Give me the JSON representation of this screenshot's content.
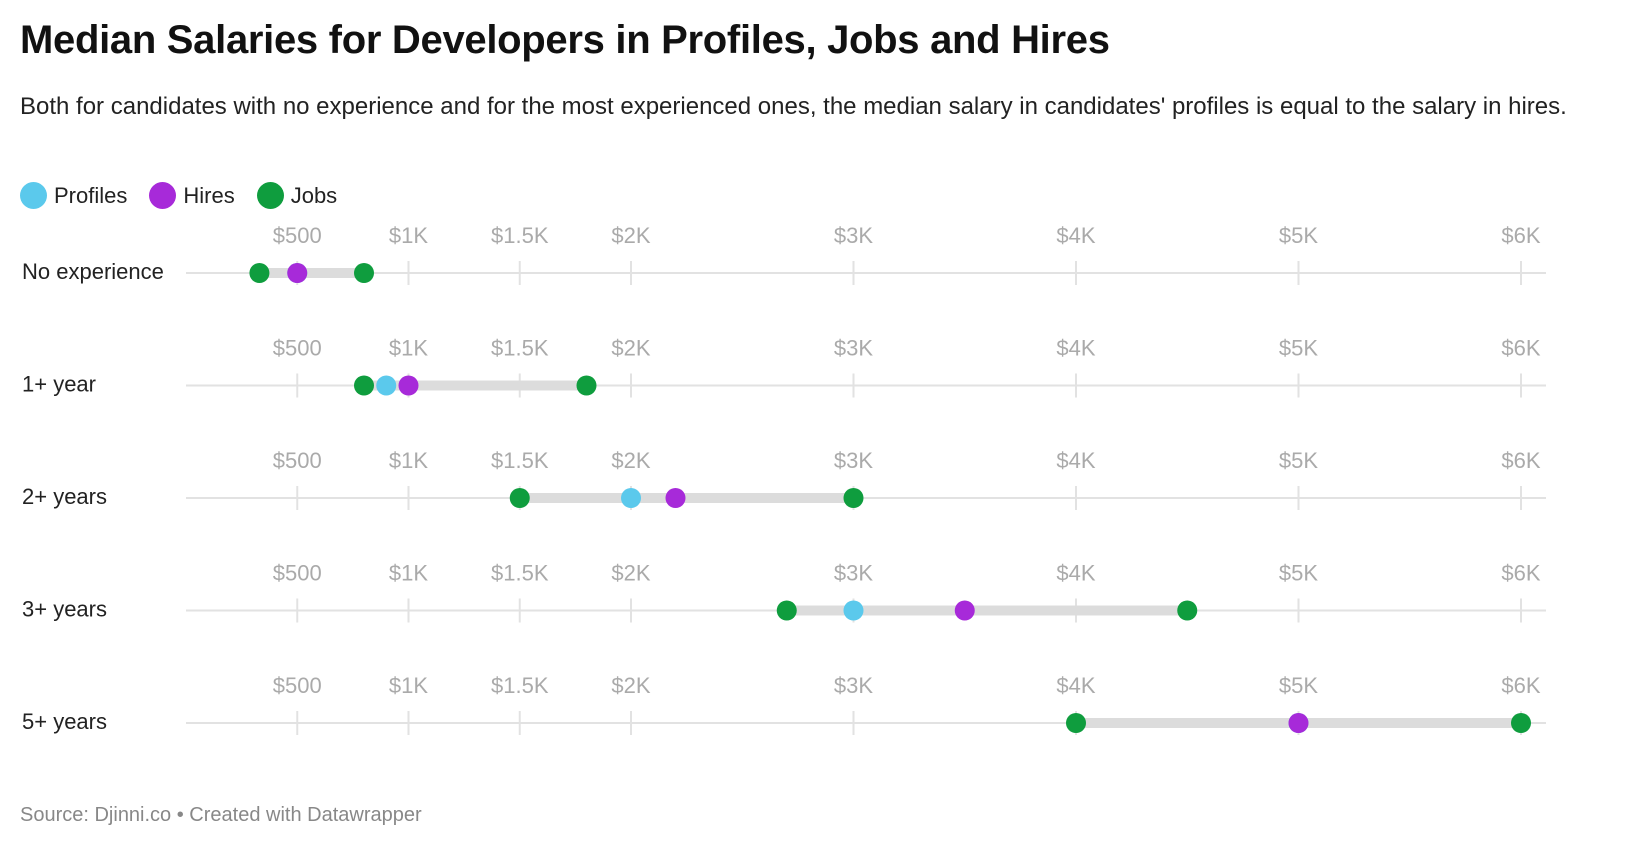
{
  "header": {
    "title": "Median Salaries for Developers in Profiles, Jobs and Hires",
    "subtitle": "Both for candidates with no experience and for the most experienced ones, the median salary in candidates' profiles is equal to the salary in hires."
  },
  "legend": [
    {
      "name": "Profiles",
      "color": "#5bc9ec"
    },
    {
      "name": "Hires",
      "color": "#a72ad9"
    },
    {
      "name": "Jobs",
      "color": "#0f9d3e"
    }
  ],
  "footer": {
    "source": "Source: Djinni.co • Created with Datawrapper"
  },
  "chart_data": {
    "type": "dot-range",
    "title": "Median Salaries for Developers in Profiles, Jobs and Hires",
    "x_ticks": [
      {
        "value": 500,
        "label": "$500"
      },
      {
        "value": 1000,
        "label": "$1K"
      },
      {
        "value": 1500,
        "label": "$1.5K"
      },
      {
        "value": 2000,
        "label": "$2K"
      },
      {
        "value": 3000,
        "label": "$3K"
      },
      {
        "value": 4000,
        "label": "$4K"
      },
      {
        "value": 5000,
        "label": "$5K"
      },
      {
        "value": 6000,
        "label": "$6K"
      }
    ],
    "xlim": [
      0,
      6070
    ],
    "grid": true,
    "legend_position": "top-left",
    "series_colors": {
      "Profiles": "#5bc9ec",
      "Hires": "#a72ad9",
      "Jobs": "#0f9d3e"
    },
    "rows": [
      {
        "label": "No experience",
        "range": [
          330,
          800
        ],
        "points": [
          {
            "series": "Jobs",
            "value": 330
          },
          {
            "series": "Profiles",
            "value": 500
          },
          {
            "series": "Hires",
            "value": 500
          },
          {
            "series": "Jobs",
            "value": 800
          }
        ]
      },
      {
        "label": "1+ year",
        "range": [
          800,
          1800
        ],
        "points": [
          {
            "series": "Jobs",
            "value": 800
          },
          {
            "series": "Profiles",
            "value": 900
          },
          {
            "series": "Hires",
            "value": 1000
          },
          {
            "series": "Jobs",
            "value": 1800
          }
        ]
      },
      {
        "label": "2+ years",
        "range": [
          1500,
          3000
        ],
        "points": [
          {
            "series": "Jobs",
            "value": 1500
          },
          {
            "series": "Profiles",
            "value": 2000
          },
          {
            "series": "Hires",
            "value": 2200
          },
          {
            "series": "Jobs",
            "value": 3000
          }
        ]
      },
      {
        "label": "3+ years",
        "range": [
          2700,
          4500
        ],
        "points": [
          {
            "series": "Jobs",
            "value": 2700
          },
          {
            "series": "Profiles",
            "value": 3000
          },
          {
            "series": "Hires",
            "value": 3500
          },
          {
            "series": "Jobs",
            "value": 4500
          }
        ]
      },
      {
        "label": "5+ years",
        "range": [
          4000,
          6000
        ],
        "points": [
          {
            "series": "Jobs",
            "value": 4000
          },
          {
            "series": "Profiles",
            "value": 5000
          },
          {
            "series": "Hires",
            "value": 5000
          },
          {
            "series": "Jobs",
            "value": 6000
          }
        ]
      }
    ]
  }
}
